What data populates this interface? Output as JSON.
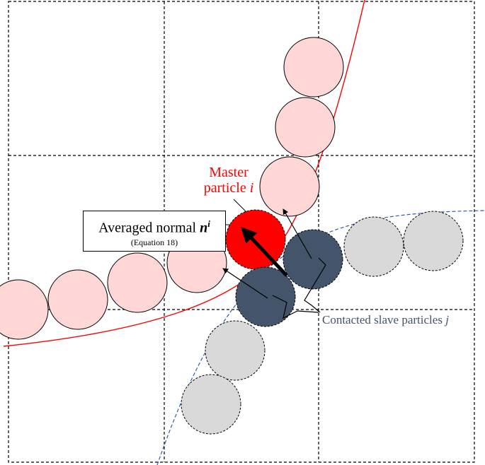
{
  "colors": {
    "master_red": "#ff0000",
    "master_fill_light": "#ffd7d7",
    "slave_dark": "#44546a",
    "slave_light": "#d9d9d9",
    "boundary_blue": "#2e5ea8",
    "grid": "#000000"
  },
  "labels": {
    "averaged_normal_text": "Averaged normal",
    "averaged_normal_symbol": "n",
    "averaged_normal_sup": "i",
    "equation_ref": "(Equation 18)",
    "master_line1": "Master",
    "master_line2": "particle",
    "master_symbol": "i",
    "slave_text": "Contacted slave particles",
    "slave_symbol": "j"
  }
}
